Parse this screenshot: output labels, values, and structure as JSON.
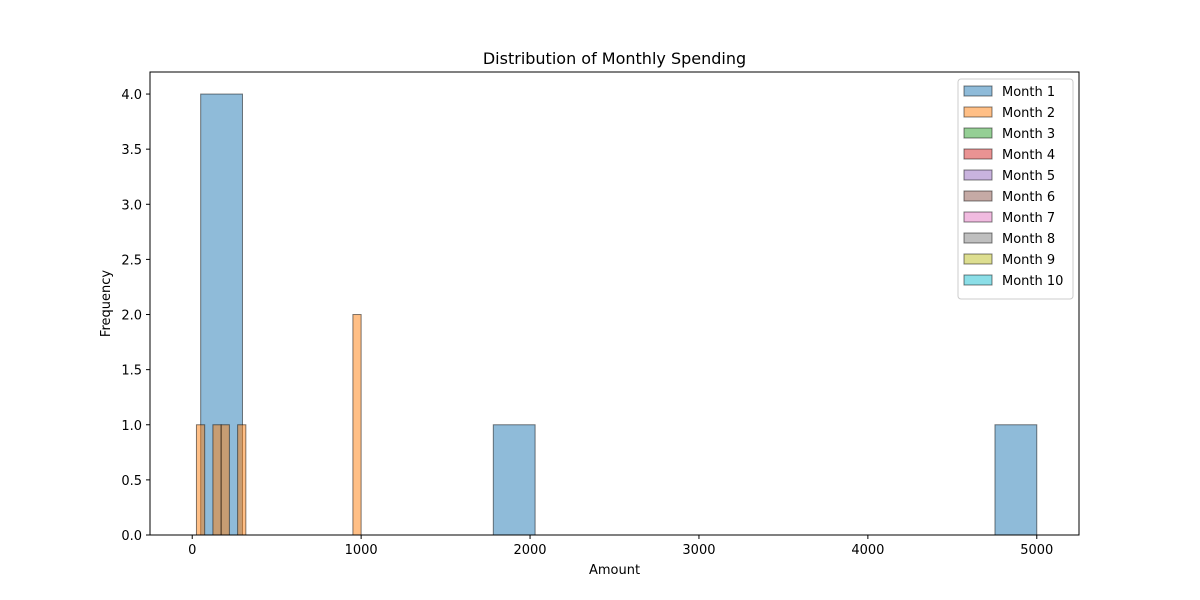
{
  "chart_data": {
    "type": "histogram",
    "title": "Distribution of Monthly Spending",
    "xlabel": "Amount",
    "ylabel": "Frequency",
    "xlim": [
      -250,
      5250
    ],
    "ylim": [
      0,
      4.2
    ],
    "xticks": [
      0,
      1000,
      2000,
      3000,
      4000,
      5000
    ],
    "yticks": [
      0.0,
      0.5,
      1.0,
      1.5,
      2.0,
      2.5,
      3.0,
      3.5,
      4.0
    ],
    "legend_position": "top-right",
    "grid": false,
    "series": [
      {
        "name": "Month 1",
        "color": "#1f77b4",
        "bins": [
          {
            "x0": 50,
            "x1": 297.5,
            "count": 4
          },
          {
            "x0": 1782.5,
            "x1": 2030,
            "count": 1
          },
          {
            "x0": 4752.5,
            "x1": 5000,
            "count": 1
          }
        ]
      },
      {
        "name": "Month 2",
        "color": "#ff7f0e",
        "bins": [
          {
            "x0": 25,
            "x1": 73.75,
            "count": 1
          },
          {
            "x0": 122.5,
            "x1": 171.25,
            "count": 1
          },
          {
            "x0": 171.25,
            "x1": 220,
            "count": 1
          },
          {
            "x0": 268.75,
            "x1": 317.5,
            "count": 1
          },
          {
            "x0": 951.25,
            "x1": 1000,
            "count": 2
          }
        ]
      },
      {
        "name": "Month 3",
        "color": "#2ca02c",
        "bins": []
      },
      {
        "name": "Month 4",
        "color": "#d62728",
        "bins": []
      },
      {
        "name": "Month 5",
        "color": "#9467bd",
        "bins": []
      },
      {
        "name": "Month 6",
        "color": "#8c564b",
        "bins": []
      },
      {
        "name": "Month 7",
        "color": "#e377c2",
        "bins": []
      },
      {
        "name": "Month 8",
        "color": "#7f7f7f",
        "bins": []
      },
      {
        "name": "Month 9",
        "color": "#bcbd22",
        "bins": []
      },
      {
        "name": "Month 10",
        "color": "#17becf",
        "bins": []
      }
    ]
  }
}
